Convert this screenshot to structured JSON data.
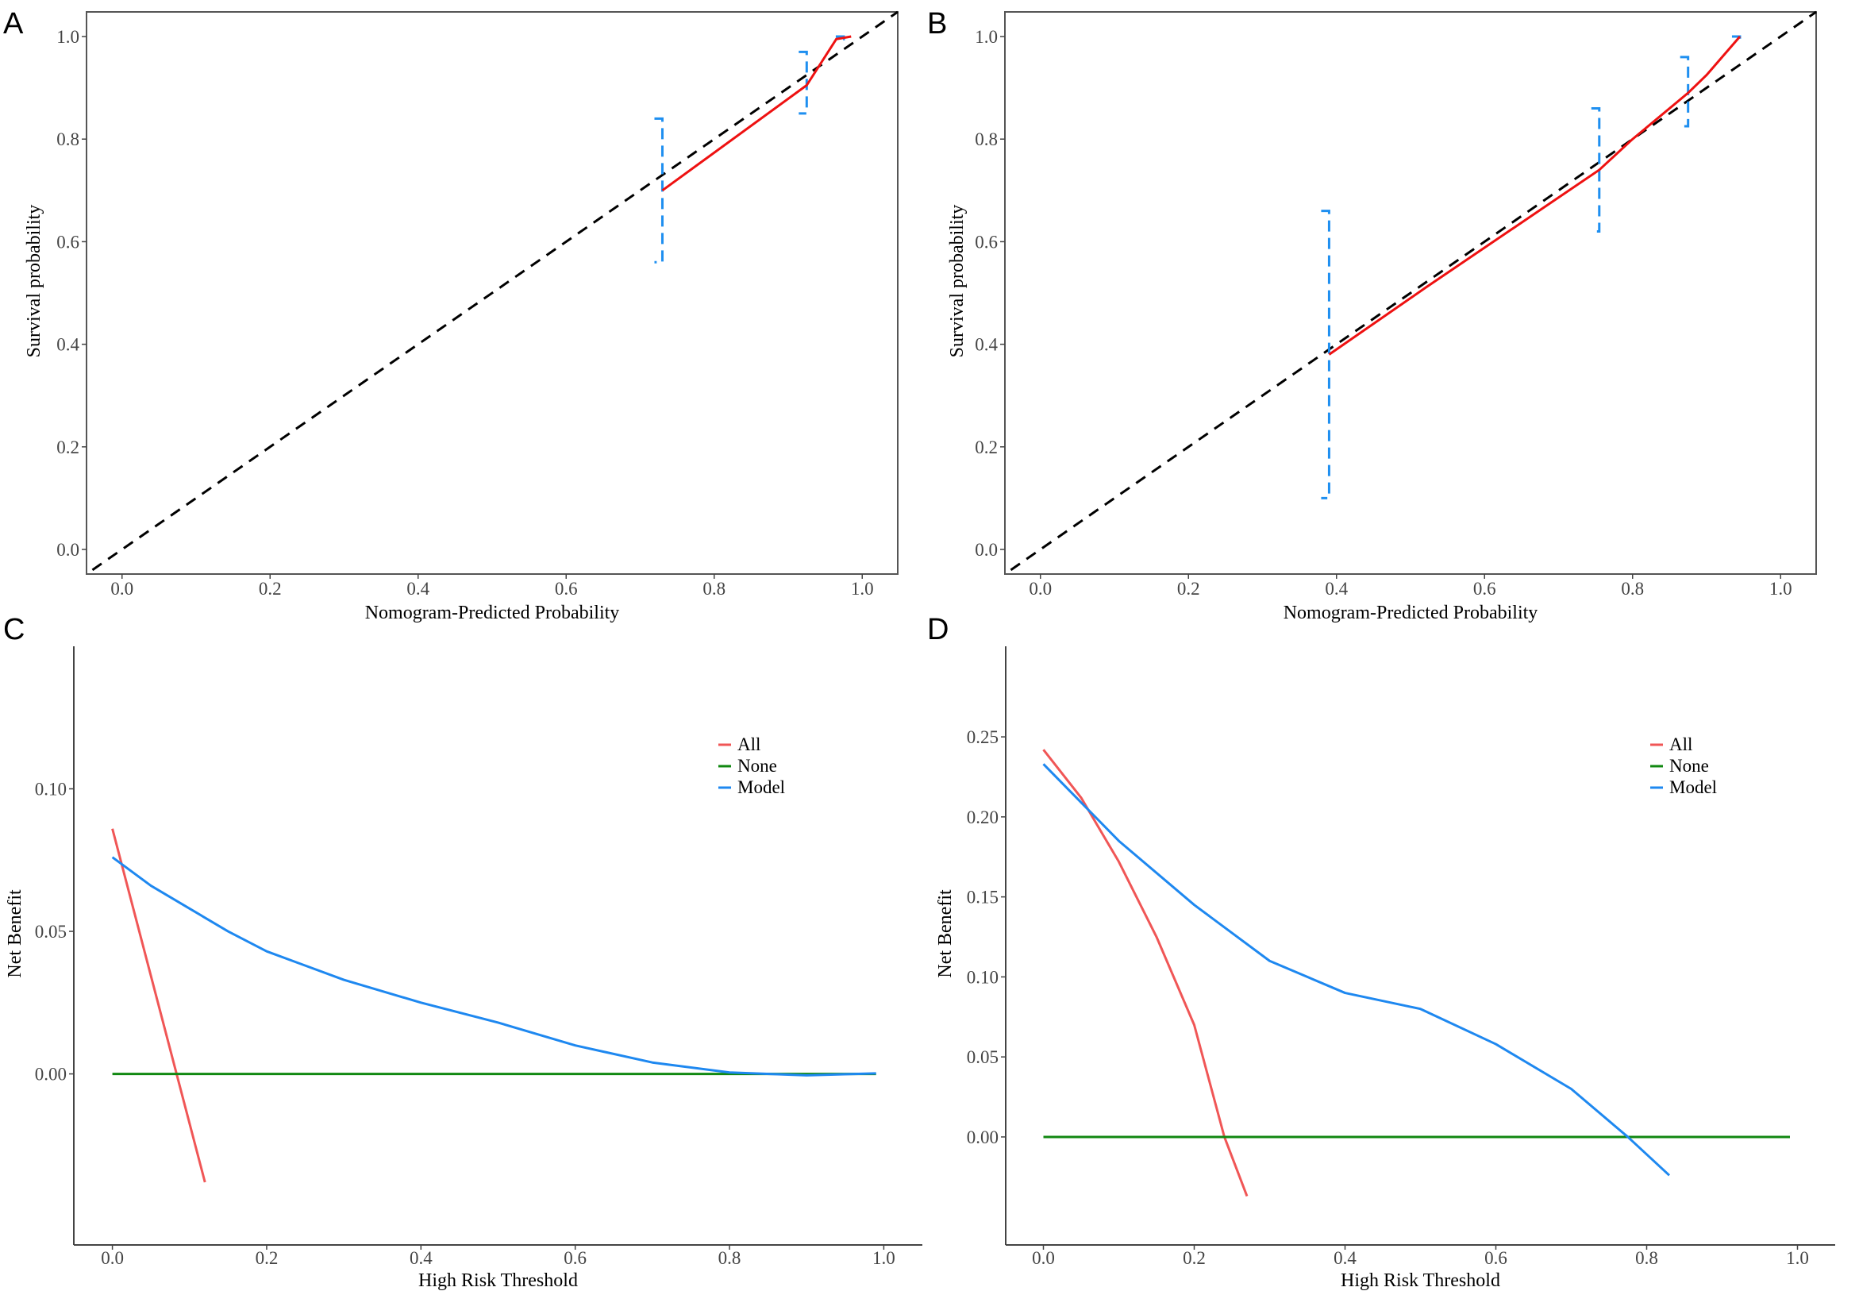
{
  "chart_data": [
    {
      "panel": "A",
      "type": "line",
      "title": "",
      "xlabel": "Nomogram-Predicted Probability",
      "ylabel": "Survival probability",
      "xlim": [
        -0.048,
        1.048
      ],
      "ylim": [
        -0.048,
        1.048
      ],
      "xticks": [
        "0.0",
        "0.2",
        "0.4",
        "0.6",
        "0.8",
        "1.0"
      ],
      "yticks": [
        "0.0",
        "0.2",
        "0.4",
        "0.6",
        "0.8",
        "1.0"
      ],
      "box": true,
      "colors": {
        "calibration": "#ee1111",
        "errorbar": "#1e8ff0",
        "ideal": "#000000"
      },
      "ideal_line": [
        [
          -0.04,
          -0.04
        ],
        [
          1.048,
          1.048
        ]
      ],
      "calibration": {
        "x": [
          0.73,
          0.925,
          0.965,
          0.985
        ],
        "y": [
          0.7,
          0.905,
          0.995,
          1.0
        ]
      },
      "errorbars": [
        {
          "x": 0.73,
          "lo": 0.56,
          "hi": 0.84
        },
        {
          "x": 0.925,
          "lo": 0.85,
          "hi": 0.97
        },
        {
          "x": 0.975,
          "lo": 0.995,
          "hi": 1.0
        }
      ]
    },
    {
      "panel": "B",
      "type": "line",
      "title": "",
      "xlabel": "Nomogram-Predicted Probability",
      "ylabel": "Survival probability",
      "xlim": [
        -0.048,
        1.048
      ],
      "ylim": [
        -0.048,
        1.048
      ],
      "xticks": [
        "0.0",
        "0.2",
        "0.4",
        "0.6",
        "0.8",
        "1.0"
      ],
      "yticks": [
        "0.0",
        "0.2",
        "0.4",
        "0.6",
        "0.8",
        "1.0"
      ],
      "box": true,
      "colors": {
        "calibration": "#ee1111",
        "errorbar": "#1e8ff0",
        "ideal": "#000000"
      },
      "ideal_line": [
        [
          -0.04,
          -0.04
        ],
        [
          1.048,
          1.048
        ]
      ],
      "calibration": {
        "x": [
          0.39,
          0.52,
          0.755,
          0.8,
          0.875,
          0.9,
          0.945
        ],
        "y": [
          0.38,
          0.51,
          0.74,
          0.8,
          0.89,
          0.925,
          1.0
        ]
      },
      "errorbars": [
        {
          "x": 0.39,
          "lo": 0.1,
          "hi": 0.66
        },
        {
          "x": 0.755,
          "lo": 0.62,
          "hi": 0.86
        },
        {
          "x": 0.875,
          "lo": 0.825,
          "hi": 0.96
        },
        {
          "x": 0.945,
          "lo": 0.998,
          "hi": 1.0
        }
      ]
    },
    {
      "panel": "C",
      "type": "line",
      "title": "",
      "xlabel": "High Risk Threshold",
      "ylabel": "Net Benefit",
      "xlim": [
        -0.05,
        1.05
      ],
      "ylim": [
        -0.06,
        0.15
      ],
      "xticks": [
        "0.0",
        "0.2",
        "0.4",
        "0.6",
        "0.8",
        "1.0"
      ],
      "yticks": [
        "0.00",
        "0.05",
        "0.10"
      ],
      "box": false,
      "legend": {
        "position": "top-right",
        "entries": [
          "All",
          "None",
          "Model"
        ]
      },
      "series": [
        {
          "name": "All",
          "color": "#f05656",
          "x": [
            0,
            0.12
          ],
          "y": [
            0.086,
            -0.038
          ]
        },
        {
          "name": "None",
          "color": "#118811",
          "x": [
            0,
            0.99
          ],
          "y": [
            0,
            0
          ]
        },
        {
          "name": "Model",
          "color": "#1e88f0",
          "x": [
            0,
            0.05,
            0.1,
            0.15,
            0.2,
            0.3,
            0.4,
            0.5,
            0.6,
            0.7,
            0.8,
            0.9,
            0.99
          ],
          "y": [
            0.076,
            0.066,
            0.058,
            0.05,
            0.043,
            0.033,
            0.025,
            0.018,
            0.01,
            0.004,
            0.0005,
            -0.0005,
            0.0002
          ]
        }
      ]
    },
    {
      "panel": "D",
      "type": "line",
      "title": "",
      "xlabel": "High Risk Threshold",
      "ylabel": "Net Benefit",
      "xlim": [
        -0.05,
        1.05
      ],
      "ylim": [
        -0.0675,
        0.3066
      ],
      "xticks": [
        "0.0",
        "0.2",
        "0.4",
        "0.6",
        "0.8",
        "1.0"
      ],
      "yticks": [
        "0.00",
        "0.05",
        "0.10",
        "0.15",
        "0.20",
        "0.25"
      ],
      "box": false,
      "legend": {
        "position": "top-right",
        "entries": [
          "All",
          "None",
          "Model"
        ]
      },
      "series": [
        {
          "name": "All",
          "color": "#f05656",
          "x": [
            0,
            0.05,
            0.1,
            0.15,
            0.2,
            0.24,
            0.27
          ],
          "y": [
            0.242,
            0.212,
            0.172,
            0.125,
            0.07,
            0.0,
            -0.037
          ]
        },
        {
          "name": "None",
          "color": "#118811",
          "x": [
            0,
            0.99
          ],
          "y": [
            0,
            0
          ]
        },
        {
          "name": "Model",
          "color": "#1e88f0",
          "x": [
            0,
            0.05,
            0.1,
            0.2,
            0.3,
            0.4,
            0.5,
            0.6,
            0.7,
            0.775,
            0.83
          ],
          "y": [
            0.233,
            0.209,
            0.185,
            0.145,
            0.11,
            0.09,
            0.08,
            0.058,
            0.03,
            0.0,
            -0.024
          ]
        }
      ]
    }
  ]
}
